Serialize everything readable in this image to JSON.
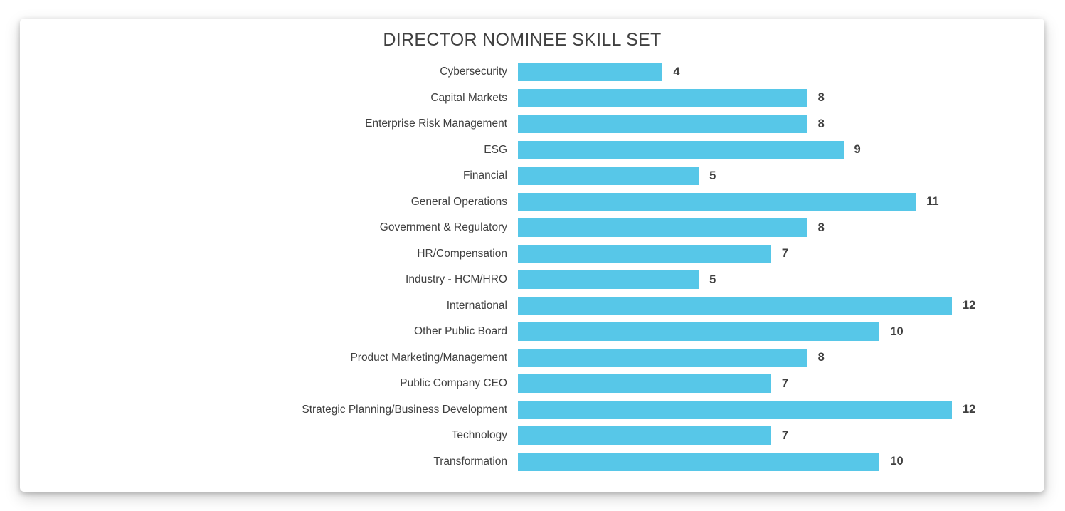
{
  "window": {
    "background": "#ffffff",
    "card_background": "#ffffff"
  },
  "chart_data": {
    "type": "bar",
    "orientation": "horizontal",
    "title": "DIRECTOR NOMINEE SKILL SET",
    "categories": [
      "Cybersecurity",
      "Capital Markets",
      "Enterprise Risk Management",
      "ESG",
      "Financial",
      "General Operations",
      "Government & Regulatory",
      "HR/Compensation",
      "Industry - HCM/HRO",
      "International",
      "Other Public Board",
      "Product Marketing/Management",
      "Public Company CEO",
      "Strategic Planning/Business Development",
      "Technology",
      "Transformation"
    ],
    "values": [
      4,
      8,
      8,
      9,
      5,
      11,
      8,
      7,
      5,
      12,
      10,
      8,
      7,
      12,
      7,
      10
    ],
    "xlabel": "",
    "ylabel": "",
    "xlim": [
      0,
      12
    ],
    "grid": false,
    "legend": false,
    "value_labels_position": "end-of-bar",
    "bar_color": "#57C7E8",
    "title_color": "#404040",
    "label_color": "#404040",
    "value_color": "#404040"
  }
}
